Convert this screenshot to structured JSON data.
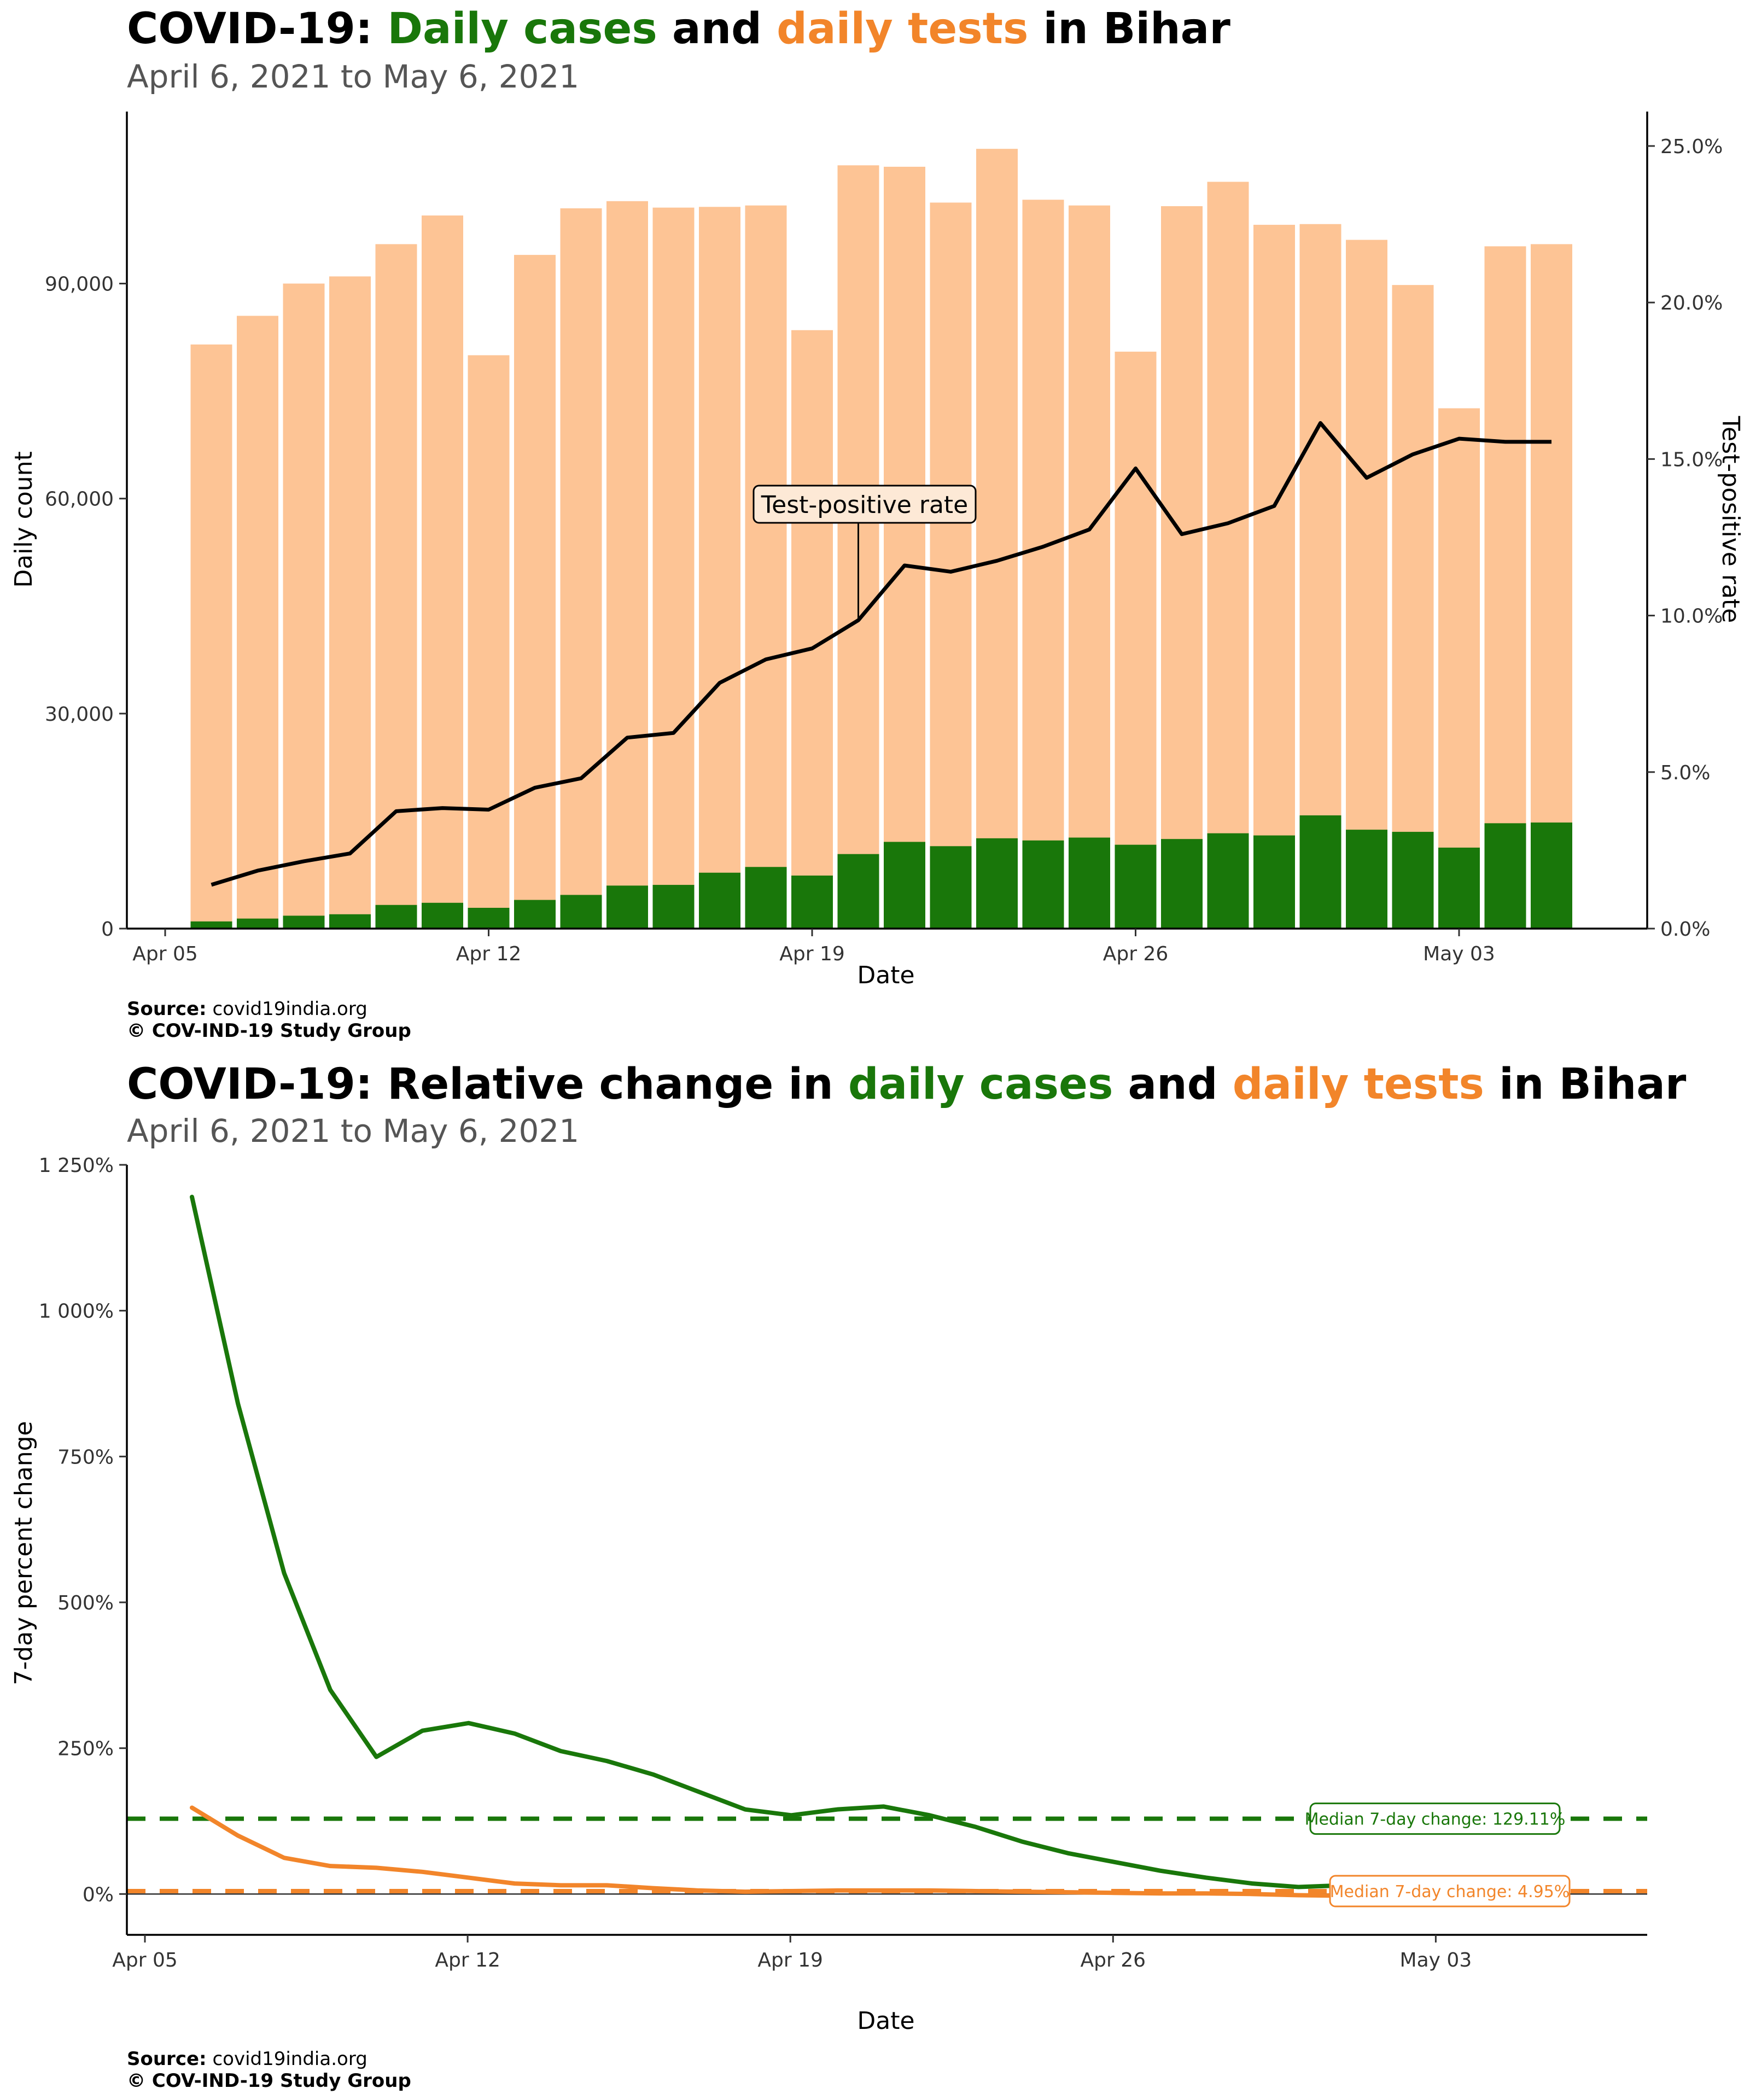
{
  "colors": {
    "cases": "#19770a",
    "tests": "#fdc495",
    "tests_line": "#f2852a",
    "tpr": "#000000"
  },
  "panel1": {
    "title_prefix": "COVID-19: ",
    "title_cases": "Daily cases",
    "title_and": " and ",
    "title_tests": "daily tests",
    "title_suffix": " in Bihar",
    "subtitle": "April  6, 2021 to May  6, 2021",
    "source_label": "Source:",
    "source_value": " covid19india.org",
    "copyright": "© COV-IND-19 Study Group",
    "annotation": "Test-positive rate"
  },
  "panel2": {
    "title_prefix": "COVID-19: Relative change in ",
    "title_cases": "daily cases",
    "title_and": " and ",
    "title_tests": "daily tests",
    "title_suffix": " in Bihar",
    "subtitle": "April  6, 2021 to May  6, 2021",
    "source_label": "Source:",
    "source_value": " covid19india.org",
    "copyright": "© COV-IND-19 Study Group"
  },
  "chart_data": [
    {
      "type": "bar",
      "xlabel": "Date",
      "ylabel": "Daily count",
      "y2label": "Test-positive rate",
      "x_ticks": [
        "Apr 05",
        "Apr 12",
        "Apr 19",
        "Apr 26",
        "May 03"
      ],
      "y_ticks": [
        "0",
        "30,000",
        "60,000",
        "90,000"
      ],
      "y2_ticks": [
        "0.0%",
        "5.0%",
        "10.0%",
        "15.0%",
        "20.0%",
        "25.0%"
      ],
      "ylim": [
        0,
        114000
      ],
      "y2lim": [
        0,
        26.1
      ],
      "grid": false,
      "annotation_date": "2021-04-20",
      "dates": [
        "2021-04-06",
        "2021-04-07",
        "2021-04-08",
        "2021-04-09",
        "2021-04-10",
        "2021-04-11",
        "2021-04-12",
        "2021-04-13",
        "2021-04-14",
        "2021-04-15",
        "2021-04-16",
        "2021-04-17",
        "2021-04-18",
        "2021-04-19",
        "2021-04-20",
        "2021-04-21",
        "2021-04-22",
        "2021-04-23",
        "2021-04-24",
        "2021-04-25",
        "2021-04-26",
        "2021-04-27",
        "2021-04-28",
        "2021-04-29",
        "2021-04-30",
        "2021-05-01",
        "2021-05-02",
        "2021-05-03",
        "2021-05-04",
        "2021-05-05"
      ],
      "series": [
        {
          "name": "daily tests",
          "values": [
            81500,
            85500,
            90000,
            91000,
            95500,
            99500,
            80000,
            94000,
            100500,
            101500,
            100600,
            100700,
            100900,
            83500,
            106500,
            106300,
            101300,
            108800,
            101700,
            100900,
            80500,
            100800,
            104200,
            98200,
            98300,
            96100,
            89800,
            72600,
            95200,
            95500
          ]
        },
        {
          "name": "daily cases",
          "values": [
            1000,
            1400,
            1800,
            2000,
            3300,
            3600,
            2900,
            4000,
            4700,
            6000,
            6100,
            7800,
            8600,
            7400,
            10400,
            12100,
            11500,
            12600,
            12300,
            12700,
            11700,
            12500,
            13300,
            13000,
            15800,
            13800,
            13500,
            11300,
            14700,
            14800
          ]
        },
        {
          "name": "Test-positive rate",
          "values": [
            1.4,
            1.85,
            2.15,
            2.4,
            3.75,
            3.85,
            3.8,
            4.5,
            4.8,
            6.1,
            6.25,
            7.85,
            8.6,
            8.95,
            9.85,
            11.6,
            11.4,
            11.75,
            12.2,
            12.75,
            14.7,
            12.6,
            12.95,
            13.5,
            16.15,
            14.4,
            15.15,
            15.65,
            15.55,
            15.55
          ]
        }
      ]
    },
    {
      "type": "line",
      "xlabel": "Date",
      "ylabel": "7-day percent change",
      "x_ticks": [
        "Apr 05",
        "Apr 12",
        "Apr 19",
        "Apr 26",
        "May 03"
      ],
      "y_ticks": [
        "0%",
        "250%",
        "500%",
        "750%",
        "1 000%",
        "1 250%"
      ],
      "ylim": [
        -70,
        1250
      ],
      "grid": false,
      "dates": [
        "2021-04-06",
        "2021-04-07",
        "2021-04-08",
        "2021-04-09",
        "2021-04-10",
        "2021-04-11",
        "2021-04-12",
        "2021-04-13",
        "2021-04-14",
        "2021-04-15",
        "2021-04-16",
        "2021-04-17",
        "2021-04-18",
        "2021-04-19",
        "2021-04-20",
        "2021-04-21",
        "2021-04-22",
        "2021-04-23",
        "2021-04-24",
        "2021-04-25",
        "2021-04-26",
        "2021-04-27",
        "2021-04-28",
        "2021-04-29",
        "2021-04-30",
        "2021-05-01",
        "2021-05-02",
        "2021-05-03",
        "2021-05-04",
        "2021-05-05"
      ],
      "series": [
        {
          "name": "daily cases",
          "values": [
            1195,
            840,
            550,
            350,
            235,
            280,
            293,
            275,
            245,
            228,
            205,
            175,
            145,
            135,
            145,
            150,
            135,
            115,
            90,
            70,
            55,
            40,
            28,
            18,
            12,
            15,
            10,
            5,
            3,
            2
          ]
        },
        {
          "name": "daily tests",
          "values": [
            148,
            100,
            62,
            48,
            45,
            38,
            28,
            18,
            15,
            15,
            10,
            6,
            4,
            5,
            6,
            6,
            6,
            5,
            4,
            3,
            2,
            1,
            1,
            0,
            -2,
            -3,
            -4,
            -4,
            -4,
            -4
          ]
        }
      ],
      "reference_lines": [
        {
          "label": "Median 7-day change: 129.11%",
          "value": 129.11,
          "series": "daily cases"
        },
        {
          "label": "Median 7-day change: 4.95%",
          "value": 4.95,
          "series": "daily tests"
        }
      ]
    }
  ]
}
